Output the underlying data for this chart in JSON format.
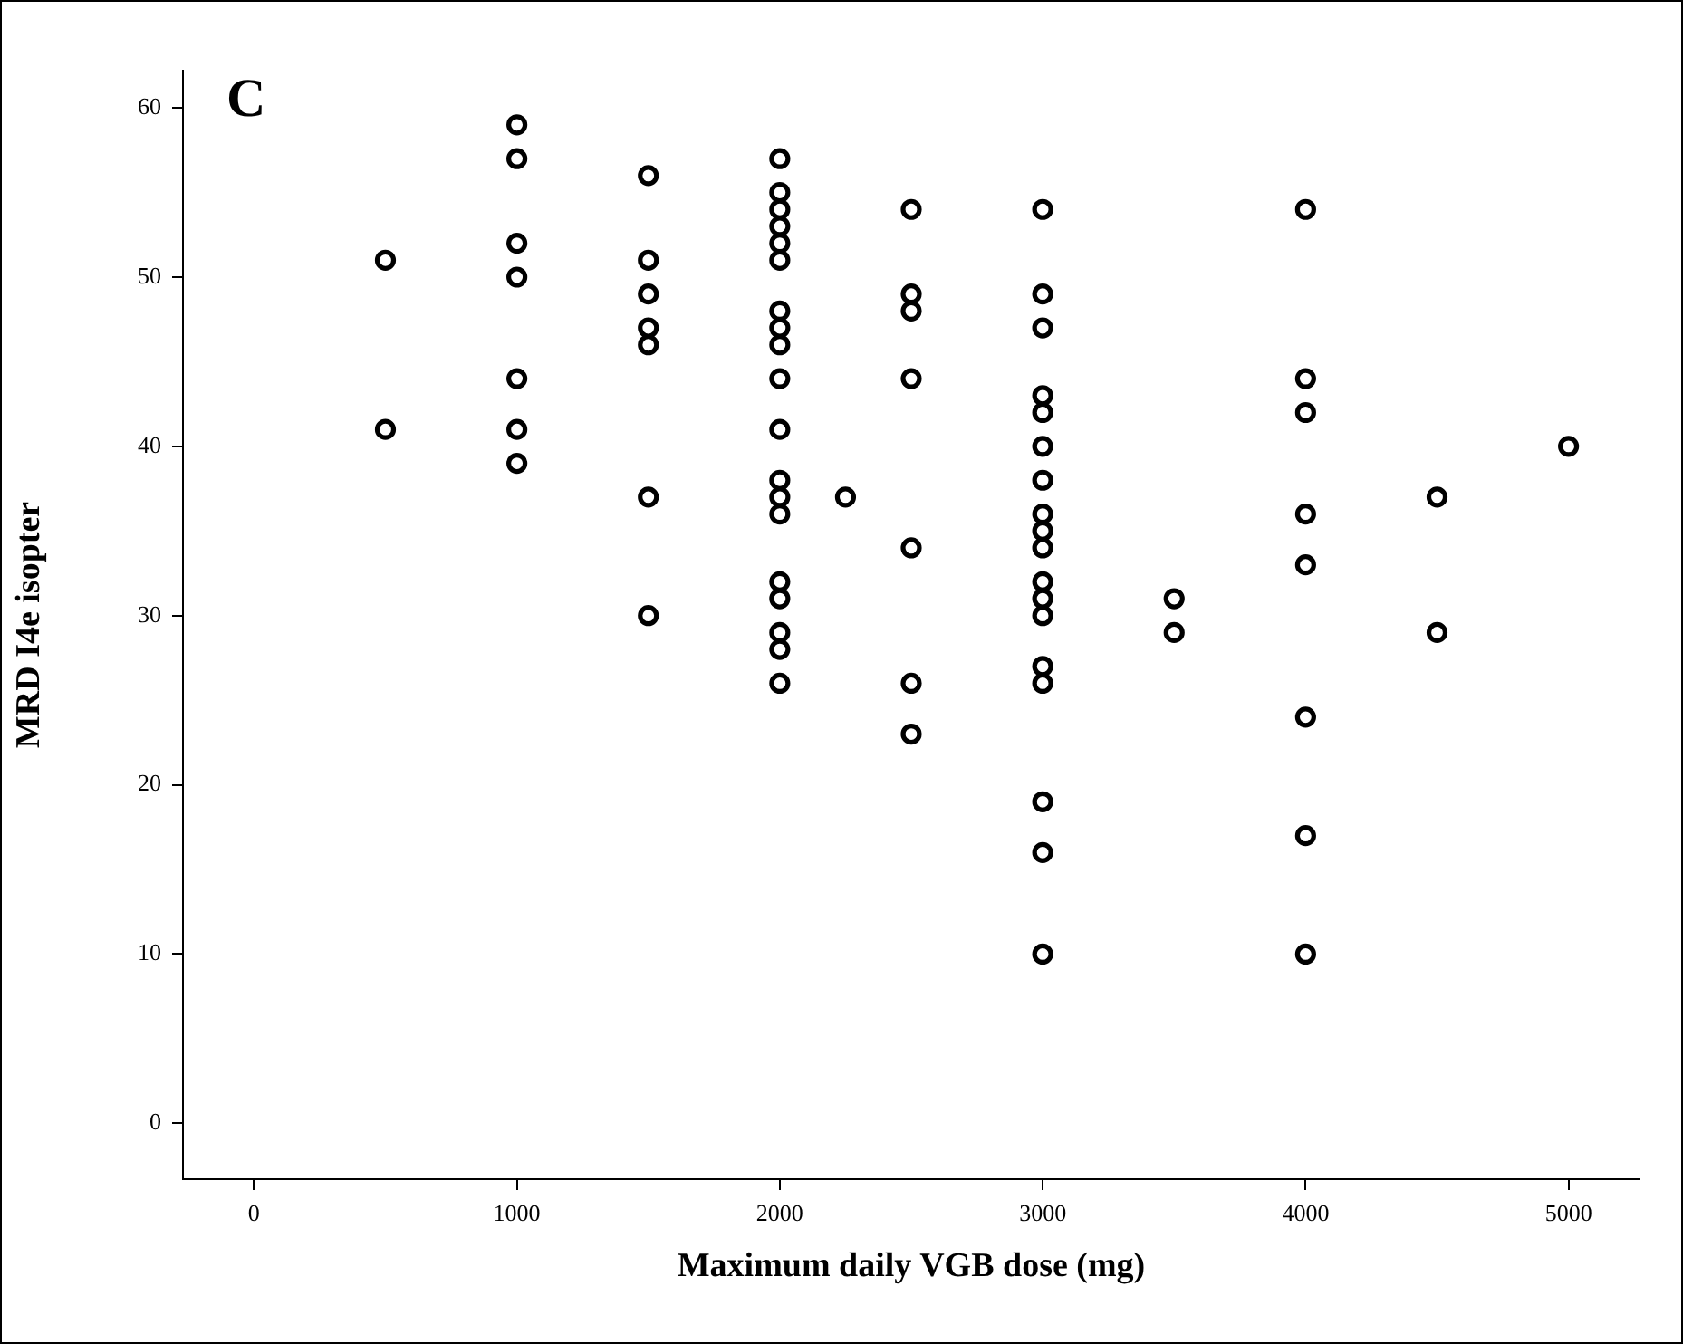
{
  "chart_data": {
    "type": "scatter",
    "xlabel": "Maximum daily VGB dose (mg)",
    "ylabel": "MRD I4e isopter",
    "annotations": [
      "C"
    ],
    "xlim": [
      -270,
      5270
    ],
    "ylim": [
      -3.3,
      62.2
    ],
    "xticks": [
      0,
      1000,
      2000,
      3000,
      4000,
      5000
    ],
    "yticks": [
      0,
      10,
      20,
      30,
      40,
      50,
      60
    ],
    "grid": false,
    "legend": false,
    "marker": "circle",
    "series": [
      {
        "color": "#000000",
        "x": [
          500,
          500,
          1000,
          1000,
          1000,
          1000,
          1000,
          1000,
          1000,
          1500,
          1500,
          1500,
          1500,
          1500,
          1500,
          1500,
          2000,
          2000,
          2000,
          2000,
          2000,
          2000,
          2000,
          2000,
          2000,
          2000,
          2000,
          2000,
          2000,
          2000,
          2000,
          2000,
          2000,
          2000,
          2000,
          2250,
          2500,
          2500,
          2500,
          2500,
          2500,
          2500,
          2500,
          3000,
          3000,
          3000,
          3000,
          3000,
          3000,
          3000,
          3000,
          3000,
          3000,
          3000,
          3000,
          3000,
          3000,
          3000,
          3000,
          3000,
          3000,
          3500,
          3500,
          4000,
          4000,
          4000,
          4000,
          4000,
          4000,
          4000,
          4000,
          4500,
          4500,
          5000
        ],
        "values": [
          51,
          41,
          59,
          57,
          52,
          50,
          44,
          41,
          39,
          56,
          51,
          49,
          47,
          46,
          37,
          30,
          57,
          55,
          54,
          53,
          52,
          51,
          48,
          47,
          46,
          44,
          41,
          38,
          37,
          36,
          32,
          31,
          29,
          28,
          26,
          37,
          54,
          49,
          48,
          44,
          34,
          26,
          23,
          54,
          49,
          47,
          43,
          42,
          40,
          38,
          36,
          35,
          34,
          32,
          31,
          30,
          27,
          26,
          19,
          16,
          10,
          31,
          29,
          54,
          44,
          42,
          36,
          33,
          24,
          17,
          10,
          37,
          29,
          40
        ]
      }
    ]
  }
}
